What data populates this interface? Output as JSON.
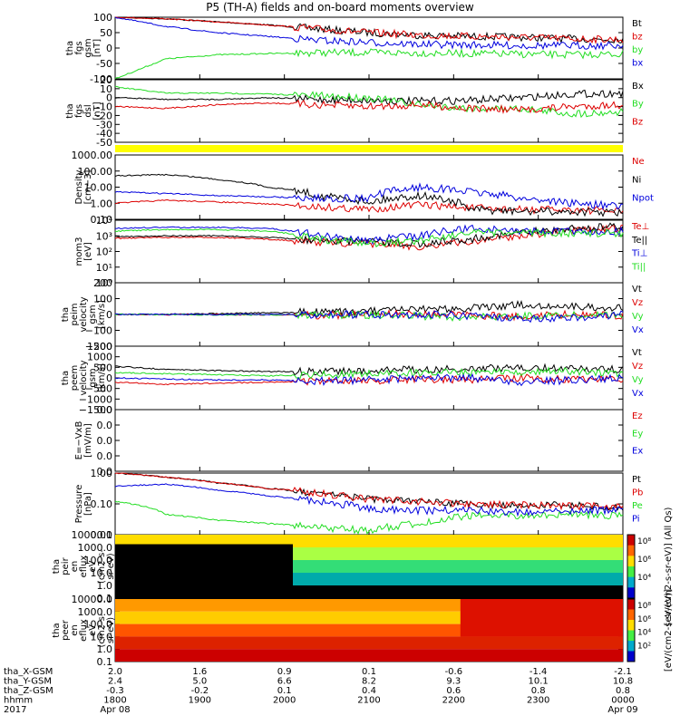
{
  "title": "P5 (TH-A) fields and on-board moments overview",
  "colors": {
    "black": "#000000",
    "red": "#dd0000",
    "green": "#22dd22",
    "blue": "#0000dd",
    "yellow": "#ffff00"
  },
  "chart_data": [
    {
      "type": "line",
      "panel": "fgs_gsm",
      "ylabel": [
        "tha",
        "fgs",
        "gsm",
        "[nT]"
      ],
      "yticks": [
        "100",
        "50",
        "0",
        "-50",
        "-100"
      ],
      "ylim": [
        -100,
        100
      ],
      "series": [
        {
          "name": "Bt",
          "color": "black",
          "values": [
            100,
            95,
            85,
            75,
            62,
            50,
            42,
            38,
            35,
            30,
            28
          ]
        },
        {
          "name": "bz",
          "color": "red",
          "values": [
            100,
            95,
            85,
            75,
            62,
            50,
            42,
            38,
            35,
            30,
            28
          ]
        },
        {
          "name": "by",
          "color": "green",
          "values": [
            -100,
            -35,
            -22,
            -18,
            -15,
            -15,
            -16,
            -18,
            -20,
            -22,
            -20
          ]
        },
        {
          "name": "bx",
          "color": "blue",
          "values": [
            100,
            70,
            50,
            38,
            25,
            18,
            12,
            10,
            8,
            8,
            8
          ]
        }
      ]
    },
    {
      "type": "line",
      "panel": "fgs_dsl",
      "ylabel": [
        "tha",
        "fgs",
        "dsl",
        "[nT]"
      ],
      "yticks": [
        "20",
        "10",
        "0",
        "-10",
        "-20",
        "-30",
        "-40",
        "-50"
      ],
      "ylim": [
        -50,
        20
      ],
      "series": [
        {
          "name": "Bx",
          "color": "black",
          "values": [
            0,
            -2,
            -2,
            0,
            -2,
            -3,
            -4,
            -3,
            0,
            4,
            5
          ]
        },
        {
          "name": "By",
          "color": "green",
          "values": [
            12,
            5,
            5,
            4,
            2,
            0,
            -8,
            -12,
            -12,
            -18,
            -16
          ]
        },
        {
          "name": "Bz",
          "color": "red",
          "values": [
            -10,
            -12,
            -8,
            -6,
            -8,
            -10,
            -8,
            -12,
            -14,
            -10,
            -8
          ]
        }
      ]
    },
    {
      "type": "line",
      "panel": "density",
      "ylabel": [
        "Density",
        "[cm−3]"
      ],
      "yticks": [
        "1000.00",
        "100.00",
        "10.00",
        "1.00",
        "0.10"
      ],
      "log": true,
      "ylim": [
        0.1,
        1000
      ],
      "series": [
        {
          "name": "Ne",
          "color": "red",
          "values": [
            1.0,
            1.5,
            1.2,
            0.9,
            0.6,
            0.4,
            0.8,
            0.5,
            0.4,
            0.4,
            0.3
          ]
        },
        {
          "name": "Ni",
          "color": "black",
          "values": [
            50,
            60,
            30,
            10,
            3,
            1.2,
            3,
            0.4,
            0.3,
            0.3,
            0.25
          ]
        },
        {
          "name": "Npot",
          "color": "blue",
          "values": [
            5,
            4,
            3,
            2.5,
            2,
            2,
            10,
            5,
            2,
            1,
            0.6
          ]
        }
      ]
    },
    {
      "type": "line",
      "panel": "moments",
      "ylabel": [
        "mom3",
        "[eV]"
      ],
      "yticks": [
        "10⁴",
        "10³",
        "10²",
        "10¹",
        "10⁰"
      ],
      "log": true,
      "ylim": [
        1,
        10000
      ],
      "series": [
        {
          "name": "Te⊥",
          "color": "red",
          "values": [
            700,
            800,
            800,
            600,
            400,
            300,
            200,
            400,
            1000,
            2000,
            3000
          ]
        },
        {
          "name": "Te||",
          "color": "black",
          "values": [
            900,
            1000,
            1000,
            800,
            500,
            400,
            300,
            600,
            1500,
            3000,
            4000
          ]
        },
        {
          "name": "Ti⊥",
          "color": "blue",
          "values": [
            3000,
            3500,
            3500,
            3000,
            1000,
            500,
            1000,
            3000,
            2000,
            2000,
            2000
          ]
        },
        {
          "name": "Ti||",
          "color": "green",
          "values": [
            2000,
            2500,
            2500,
            2000,
            600,
            300,
            500,
            1500,
            1500,
            1500,
            1500
          ]
        }
      ]
    },
    {
      "type": "line",
      "panel": "peim_velocity",
      "ylabel": [
        "tha",
        "peim",
        "velocity",
        "gsm",
        "[km/s]"
      ],
      "yticks": [
        "200",
        "100",
        "0",
        "−100",
        "−200"
      ],
      "ylim": [
        -200,
        200
      ],
      "series": [
        {
          "name": "Vt",
          "color": "black",
          "values": [
            0,
            2,
            5,
            10,
            15,
            20,
            30,
            40,
            60,
            50,
            40
          ]
        },
        {
          "name": "Vz",
          "color": "red",
          "values": [
            0,
            0,
            0,
            -2,
            -5,
            0,
            5,
            -5,
            -10,
            0,
            -5
          ]
        },
        {
          "name": "Vy",
          "color": "green",
          "values": [
            0,
            0,
            -2,
            -3,
            0,
            -5,
            -10,
            -20,
            -10,
            -5,
            0
          ]
        },
        {
          "name": "Vx",
          "color": "blue",
          "values": [
            0,
            0,
            0,
            0,
            0,
            0,
            0,
            -10,
            -30,
            -20,
            0
          ]
        }
      ]
    },
    {
      "type": "line",
      "panel": "peem_velocity",
      "ylabel": [
        "tha",
        "peem",
        "velocity",
        "gsm",
        "[km/s]"
      ],
      "yticks": [
        "1500",
        "1000",
        "500",
        "0",
        "−500",
        "−1000",
        "−1500"
      ],
      "ylim": [
        -1500,
        1500
      ],
      "series": [
        {
          "name": "Vt",
          "color": "black",
          "values": [
            550,
            400,
            350,
            300,
            300,
            350,
            400,
            450,
            500,
            450,
            400
          ]
        },
        {
          "name": "Vz",
          "color": "red",
          "values": [
            -200,
            -300,
            -250,
            -200,
            -150,
            -150,
            -50,
            -100,
            0,
            -100,
            -50
          ]
        },
        {
          "name": "Vy",
          "color": "green",
          "values": [
            250,
            200,
            150,
            100,
            150,
            200,
            250,
            250,
            300,
            300,
            200
          ]
        },
        {
          "name": "Vx",
          "color": "blue",
          "values": [
            0,
            -50,
            -100,
            -100,
            -150,
            -100,
            0,
            0,
            -200,
            -100,
            0
          ]
        }
      ]
    },
    {
      "type": "line",
      "panel": "efield",
      "ylabel": [
        "E=−VxB",
        "[mV/m]"
      ],
      "yticks": [
        "0.0",
        "0.0",
        "0.0",
        "0.0",
        "0.0"
      ],
      "series": [
        {
          "name": "Ez",
          "color": "red",
          "values": []
        },
        {
          "name": "Ey",
          "color": "green",
          "values": []
        },
        {
          "name": "Ex",
          "color": "blue",
          "values": []
        }
      ]
    },
    {
      "type": "line",
      "panel": "pressure",
      "ylabel": [
        "Pressure",
        "[nPa]"
      ],
      "yticks": [
        "1.00",
        "0.10",
        "0.01"
      ],
      "log": true,
      "ylim": [
        0.005,
        10
      ],
      "series": [
        {
          "name": "Pt",
          "color": "black",
          "values": [
            10,
            6,
            3,
            1.5,
            0.8,
            0.4,
            0.3,
            0.2,
            0.2,
            0.18,
            0.15
          ]
        },
        {
          "name": "Pb",
          "color": "red",
          "values": [
            10,
            6,
            3,
            1.5,
            0.8,
            0.4,
            0.3,
            0.2,
            0.2,
            0.18,
            0.15
          ]
        },
        {
          "name": "Pe",
          "color": "green",
          "values": [
            0.3,
            0.06,
            0.03,
            0.02,
            0.012,
            0.008,
            0.02,
            0.05,
            0.05,
            0.06,
            0.05
          ]
        },
        {
          "name": "Pi",
          "color": "blue",
          "values": [
            2,
            2.5,
            1.2,
            0.6,
            0.3,
            0.12,
            0.1,
            0.1,
            0.08,
            0.1,
            0.1
          ]
        }
      ]
    },
    {
      "type": "heatmap",
      "panel": "peir_eflux",
      "ylabel": [
        "tha",
        "peir",
        "en",
        "eflux",
        "eV",
        "(cm2-s-",
        "sr-eV)"
      ],
      "yticks": [
        "10000.0",
        "1000.0",
        "100.0",
        "10.0",
        "1.0",
        "0.1"
      ],
      "colorbar": {
        "label": "[eV/(cm2-s-sr-eV)] (All Qs)",
        "ticks": [
          "10⁸",
          "10⁶",
          "10⁴"
        ]
      }
    },
    {
      "type": "heatmap",
      "panel": "peer_eflux",
      "ylabel": [
        "tha",
        "peer",
        "en",
        "eflux",
        "eV",
        "(cm2-s-",
        "sr-eV)"
      ],
      "yticks": [
        "10000.0",
        "1000.0",
        "100.0",
        "10.0",
        "1.0",
        "0.1"
      ],
      "colorbar": {
        "label": "[eV/(cm2-s-sr-eV)]",
        "ticks": [
          "10⁸",
          "10⁶",
          "10⁴",
          "10²"
        ]
      }
    }
  ],
  "time_axis": {
    "row_labels": [
      "tha_X-GSM",
      "tha_Y-GSM",
      "tha_Z-GSM",
      "hhmm",
      "2017"
    ],
    "columns": [
      {
        "x": "2.0",
        "y": "2.4",
        "z": "-0.3",
        "hhmm": "1800",
        "date": "Apr 08"
      },
      {
        "x": "1.6",
        "y": "5.0",
        "z": "-0.2",
        "hhmm": "1900",
        "date": ""
      },
      {
        "x": "0.9",
        "y": "6.6",
        "z": "0.1",
        "hhmm": "2000",
        "date": ""
      },
      {
        "x": "0.1",
        "y": "8.2",
        "z": "0.4",
        "hhmm": "2100",
        "date": ""
      },
      {
        "x": "-0.6",
        "y": "9.3",
        "z": "0.6",
        "hhmm": "2200",
        "date": ""
      },
      {
        "x": "-1.4",
        "y": "10.1",
        "z": "0.8",
        "hhmm": "2300",
        "date": ""
      },
      {
        "x": "-2.1",
        "y": "10.8",
        "z": "0.8",
        "hhmm": "0000",
        "date": "Apr 09"
      }
    ]
  }
}
